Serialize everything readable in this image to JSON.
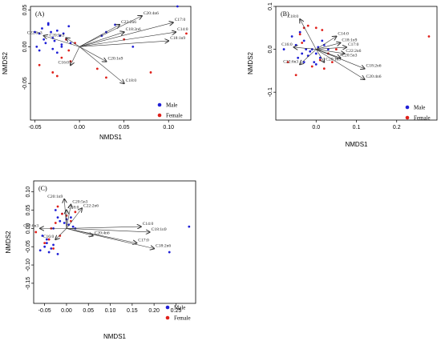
{
  "chart_data": [
    {
      "type": "scatter",
      "panel_label": "(A)",
      "xlabel": "NMDS1",
      "ylabel": "NMDS2",
      "xlim": [
        -0.055,
        0.125
      ],
      "ylim": [
        -0.1,
        0.055
      ],
      "xticks": [
        -0.05,
        0.0,
        0.05,
        0.1
      ],
      "xtick_labels": [
        "-0.05",
        "0.00",
        "0.05",
        "0.10"
      ],
      "yticks": [
        -0.05,
        0.0,
        0.05
      ],
      "ytick_labels": [
        "-0.05",
        "0.00",
        "0.05"
      ],
      "legend": {
        "position": "bottom-right",
        "entries": [
          "Male",
          "Female"
        ]
      },
      "series": [
        {
          "name": "Male",
          "color": "#1f1fd6",
          "x": [
            -0.05,
            -0.048,
            -0.045,
            -0.042,
            -0.04,
            -0.038,
            -0.035,
            -0.032,
            -0.03,
            -0.028,
            -0.025,
            -0.022,
            -0.02,
            -0.018,
            -0.015,
            -0.012,
            -0.045,
            -0.03,
            -0.02,
            -0.01,
            0.025,
            0.03,
            0.04,
            0.06,
            0.11,
            -0.035,
            -0.025
          ],
          "y": [
            0.02,
            0.0,
            0.018,
            0.025,
            0.01,
            0.005,
            0.03,
            0.02,
            0.012,
            0.008,
            0.022,
            0.015,
            0.003,
            0.018,
            0.01,
            0.028,
            -0.005,
            -0.003,
            0.0,
            0.005,
            0.015,
            0.02,
            0.03,
            0.0,
            0.055,
            0.032,
            -0.008
          ]
        },
        {
          "name": "Female",
          "color": "#e0201a",
          "x": [
            -0.045,
            -0.03,
            -0.025,
            -0.02,
            -0.015,
            -0.01,
            -0.005,
            0.02,
            0.03,
            0.05,
            0.08,
            0.12,
            -0.012
          ],
          "y": [
            -0.025,
            -0.035,
            -0.04,
            -0.015,
            0.01,
            -0.02,
            0.005,
            -0.03,
            -0.042,
            0.01,
            -0.035,
            0.018,
            -0.005
          ]
        }
      ],
      "vectors": [
        {
          "label": "C20:4n6",
          "x": 0.07,
          "y": 0.042
        },
        {
          "label": "C22:2n6",
          "x": 0.045,
          "y": 0.03
        },
        {
          "label": "C18:2n6",
          "x": 0.05,
          "y": 0.02
        },
        {
          "label": "C17:0",
          "x": 0.105,
          "y": 0.033
        },
        {
          "label": "C14:0",
          "x": 0.108,
          "y": 0.02
        },
        {
          "label": "C18:1n9",
          "x": 0.1,
          "y": 0.008
        },
        {
          "label": "C20:5n3",
          "x": -0.015,
          "y": 0.012
        },
        {
          "label": "C22:6n3",
          "x": -0.04,
          "y": 0.015
        },
        {
          "label": "C16:0",
          "x": -0.01,
          "y": -0.025
        },
        {
          "label": "C20:1n9",
          "x": 0.03,
          "y": -0.02
        },
        {
          "label": "C18:0",
          "x": 0.05,
          "y": -0.05
        }
      ]
    },
    {
      "type": "scatter",
      "panel_label": "(B)",
      "xlabel": "NMDS1",
      "ylabel": "NMDS2",
      "xlim": [
        -0.1,
        0.3
      ],
      "ylim": [
        -0.165,
        0.1
      ],
      "xticks": [
        0.0,
        0.1,
        0.2
      ],
      "xtick_labels": [
        "0.0",
        "0.1",
        "0.2"
      ],
      "yticks": [
        -0.1,
        0.0,
        0.1
      ],
      "ytick_labels": [
        "-0.1",
        "0.0",
        "0.1"
      ],
      "legend": {
        "position": "bottom-right",
        "entries": [
          "Male",
          "Female"
        ]
      },
      "series": [
        {
          "name": "Male",
          "color": "#1f1fd6",
          "x": [
            -0.08,
            -0.06,
            -0.05,
            -0.04,
            -0.035,
            -0.03,
            -0.02,
            -0.015,
            -0.01,
            0.0,
            0.005,
            0.01,
            0.02,
            -0.045,
            -0.025,
            0.015,
            -0.005,
            0.0,
            0.03,
            -0.03
          ],
          "y": [
            0.0,
            0.03,
            0.01,
            0.04,
            -0.01,
            0.02,
            -0.015,
            -0.005,
            0.0,
            -0.01,
            0.005,
            -0.02,
            0.01,
            -0.02,
            0.0,
            0.02,
            -0.03,
            -0.035,
            0.0,
            -0.03
          ]
        },
        {
          "name": "Female",
          "color": "#e0201a",
          "x": [
            -0.07,
            -0.05,
            -0.04,
            -0.03,
            -0.02,
            -0.01,
            0.0,
            0.01,
            0.02,
            0.03,
            0.05,
            0.28,
            -0.035,
            0.015,
            0.04
          ],
          "y": [
            -0.03,
            -0.06,
            0.035,
            0.05,
            0.055,
            -0.04,
            0.05,
            -0.025,
            -0.045,
            -0.01,
            0.0,
            0.03,
            0.015,
            0.045,
            -0.03
          ]
        }
      ],
      "vectors": [
        {
          "label": "C18:0",
          "x": -0.04,
          "y": 0.07
        },
        {
          "label": "C14:0",
          "x": 0.05,
          "y": 0.03
        },
        {
          "label": "C18:1n9",
          "x": 0.06,
          "y": 0.015
        },
        {
          "label": "C17:0",
          "x": 0.075,
          "y": 0.005
        },
        {
          "label": "C22:2n6",
          "x": 0.07,
          "y": -0.01
        },
        {
          "label": "C20:5n3",
          "x": 0.06,
          "y": -0.02
        },
        {
          "label": "C20:1n9",
          "x": 0.02,
          "y": -0.03
        },
        {
          "label": "C18:2n6",
          "x": 0.12,
          "y": -0.045
        },
        {
          "label": "C20:4n6",
          "x": 0.12,
          "y": -0.07
        },
        {
          "label": "C16:0",
          "x": -0.055,
          "y": 0.005
        },
        {
          "label": "C22:6n3",
          "x": -0.04,
          "y": -0.035
        }
      ]
    },
    {
      "type": "scatter",
      "panel_label": "(C)",
      "xlabel": "NMDS1",
      "ylabel": "NMDS2",
      "xlim": [
        -0.075,
        0.295
      ],
      "ylim": [
        -0.205,
        0.13
      ],
      "xticks": [
        -0.05,
        0.0,
        0.05,
        0.1,
        0.15,
        0.2,
        0.25
      ],
      "xtick_labels": [
        "-0.05",
        "0.00",
        "0.05",
        "0.10",
        "0.15",
        "0.20",
        "0.25"
      ],
      "yticks": [
        -0.15,
        -0.1,
        -0.05,
        0.0,
        0.05,
        0.1
      ],
      "ytick_labels": [
        "-0.15",
        "-0.10",
        "-0.05",
        "0.00",
        "0.05",
        "0.10"
      ],
      "legend": {
        "position": "bottom-right",
        "entries": [
          "Male",
          "Female"
        ]
      },
      "series": [
        {
          "name": "Male",
          "color": "#1f1fd6",
          "x": [
            -0.06,
            -0.05,
            -0.045,
            -0.04,
            -0.035,
            -0.03,
            -0.025,
            -0.02,
            -0.015,
            -0.01,
            -0.005,
            0.0,
            0.005,
            0.01,
            0.015,
            0.02,
            -0.055,
            -0.03,
            0.28,
            0.235,
            -0.045,
            -0.02
          ],
          "y": [
            -0.06,
            -0.05,
            -0.03,
            -0.065,
            -0.055,
            -0.045,
            0.05,
            0.03,
            0.02,
            0.04,
            0.015,
            0.025,
            0.01,
            0.03,
            0.005,
            0.0,
            -0.02,
            0.0,
            0.005,
            -0.065,
            -0.04,
            -0.07
          ]
        },
        {
          "name": "Female",
          "color": "#e0201a",
          "x": [
            -0.07,
            -0.05,
            -0.04,
            -0.03,
            -0.02,
            -0.01,
            0.0,
            0.01,
            0.02,
            -0.035,
            -0.025,
            -0.015
          ],
          "y": [
            -0.01,
            -0.04,
            -0.03,
            -0.055,
            0.06,
            0.04,
            0.035,
            0.02,
            0.045,
            0.0,
            0.015,
            -0.02
          ]
        }
      ],
      "vectors": [
        {
          "label": "C20:1n9",
          "x": -0.005,
          "y": 0.08
        },
        {
          "label": "C20:5n3",
          "x": 0.01,
          "y": 0.065
        },
        {
          "label": "C18:0",
          "x": 0.0,
          "y": 0.05
        },
        {
          "label": "C22:2n6",
          "x": 0.035,
          "y": 0.055
        },
        {
          "label": "C14:0",
          "x": 0.17,
          "y": 0.005
        },
        {
          "label": "C18:1n9",
          "x": 0.19,
          "y": -0.01
        },
        {
          "label": "C20:4n6",
          "x": 0.06,
          "y": -0.02
        },
        {
          "label": "C17:0",
          "x": 0.16,
          "y": -0.04
        },
        {
          "label": "C18:2n6",
          "x": 0.2,
          "y": -0.055
        },
        {
          "label": "C22:6n3",
          "x": -0.06,
          "y": 0.0
        },
        {
          "label": "C16:0",
          "x": -0.025,
          "y": -0.03
        }
      ]
    }
  ]
}
